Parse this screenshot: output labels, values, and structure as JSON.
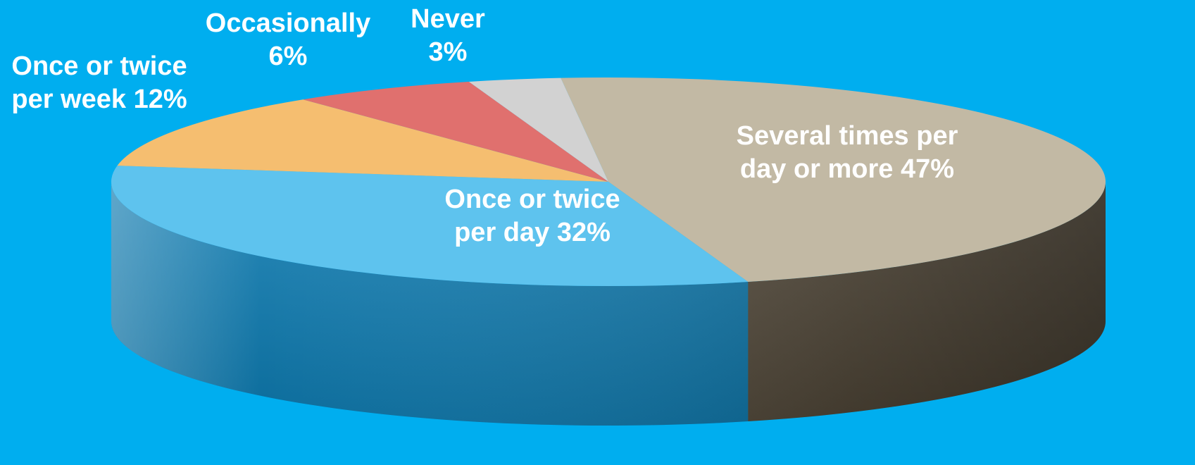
{
  "chart_data": {
    "type": "pie",
    "title": "",
    "slices": [
      {
        "key": "several",
        "line1": "Several times per",
        "line2": "day or more 47%",
        "value": 47,
        "color": "#C2B9A4",
        "side": "#564C3C"
      },
      {
        "key": "day",
        "line1": "Once or twice",
        "line2": "per day 32%",
        "value": 32,
        "color": "#5EC3EE",
        "side": "#0C7AB0"
      },
      {
        "key": "week",
        "line1": "Once or twice",
        "line2": "per week 12%",
        "value": 12,
        "color": "#F5BE70",
        "side": "#C98F3C"
      },
      {
        "key": "occ",
        "line1": "Occasionally",
        "line2": "6%",
        "value": 6,
        "color": "#E0706E",
        "side": "#A84040"
      },
      {
        "key": "never",
        "line1": "Never",
        "line2": "3%",
        "value": 3,
        "color": "#D2D2D2",
        "side": "#9A9A9A"
      }
    ]
  },
  "background_color": "#00AEEF"
}
